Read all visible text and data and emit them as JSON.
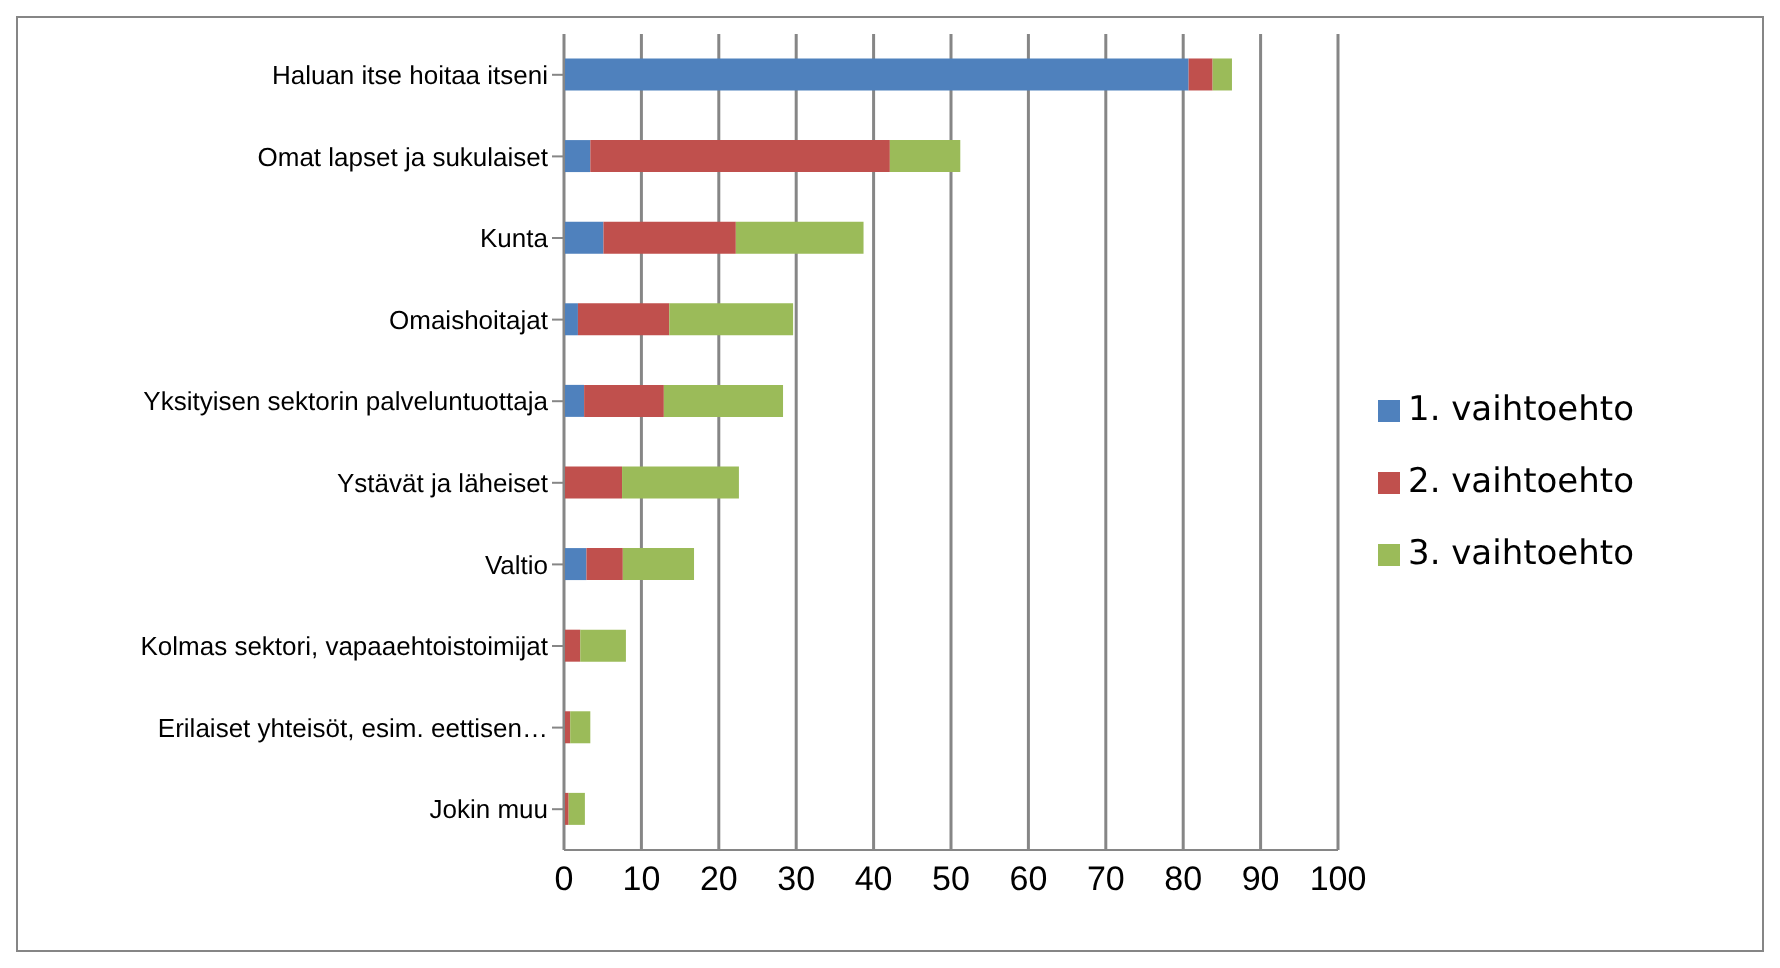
{
  "chart_data": {
    "type": "bar",
    "orientation": "horizontal",
    "stacked": true,
    "categories": [
      "Haluan itse hoitaa itseni",
      "Omat lapset ja sukulaiset",
      "Kunta",
      "Omaishoitajat",
      "Yksityisen sektorin palveluntuottaja",
      "Ystävät ja läheiset",
      "Valtio",
      "Kolmas sektori, vapaaehtoistoimijat",
      "Erilaiset yhteisöt, esim. eettisen…",
      "Jokin muu"
    ],
    "series": [
      {
        "name": "1. vaihtoehto",
        "color": "#4f81bd",
        "values": [
          80.7,
          3.4,
          5.1,
          1.8,
          2.6,
          null,
          2.9,
          0,
          0,
          0
        ]
      },
      {
        "name": "2. vaihtoehto",
        "color": "#c0504d",
        "values": [
          3.1,
          38.7,
          17.1,
          11.8,
          10.3,
          7.5,
          4.7,
          2.1,
          0.8,
          0.6
        ]
      },
      {
        "name": "3. vaihtoehto",
        "color": "#9bbb59",
        "values": [
          2.5,
          9.1,
          16.5,
          16.0,
          15.4,
          15.1,
          9.2,
          5.9,
          2.6,
          2.1
        ]
      }
    ],
    "xlim": [
      0,
      100
    ],
    "xticks": [
      0,
      10,
      20,
      30,
      40,
      50,
      60,
      70,
      80,
      90,
      100
    ],
    "grid": "x",
    "legend": "right"
  }
}
